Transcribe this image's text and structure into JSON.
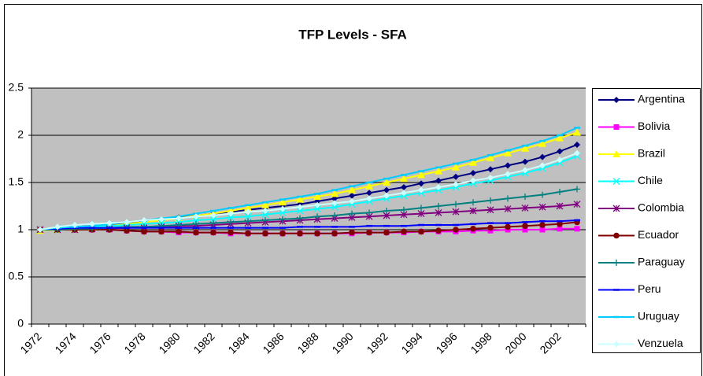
{
  "chart_data": {
    "type": "line",
    "title": "TFP Levels - SFA",
    "categories": [
      "1972",
      null,
      "1974",
      null,
      "1976",
      null,
      "1978",
      null,
      "1980",
      null,
      "1982",
      null,
      "1984",
      null,
      "1986",
      null,
      "1988",
      null,
      "1990",
      null,
      "1992",
      null,
      "1994",
      null,
      "1996",
      null,
      "1998",
      null,
      "2000",
      null,
      "2002",
      null
    ],
    "ylim": [
      0,
      2.5
    ],
    "yticks": [
      0,
      0.5,
      1,
      1.5,
      2,
      2.5
    ],
    "grid": true,
    "plot_background": "#c0c0c0",
    "legend": "right",
    "series": [
      {
        "name": "Argentina",
        "color": "#000080",
        "marker": "diamond",
        "values": [
          1.0,
          1.02,
          1.03,
          1.04,
          1.06,
          1.07,
          1.09,
          1.11,
          1.13,
          1.15,
          1.17,
          1.19,
          1.21,
          1.23,
          1.25,
          1.27,
          1.3,
          1.33,
          1.36,
          1.39,
          1.42,
          1.45,
          1.49,
          1.52,
          1.56,
          1.6,
          1.64,
          1.68,
          1.72,
          1.77,
          1.83,
          1.9
        ]
      },
      {
        "name": "Bolivia",
        "color": "#ff00ff",
        "marker": "square",
        "values": [
          1.0,
          1.0,
          1.0,
          1.0,
          1.0,
          0.99,
          0.98,
          0.98,
          0.97,
          0.97,
          0.97,
          0.96,
          0.96,
          0.96,
          0.96,
          0.96,
          0.96,
          0.96,
          0.96,
          0.97,
          0.97,
          0.97,
          0.98,
          0.98,
          0.98,
          0.99,
          0.99,
          1.0,
          1.0,
          1.0,
          1.01,
          1.01
        ]
      },
      {
        "name": "Brazil",
        "color": "#ffff00",
        "marker": "triangle",
        "values": [
          0.99,
          1.0,
          1.01,
          1.02,
          1.04,
          1.06,
          1.08,
          1.1,
          1.12,
          1.15,
          1.17,
          1.2,
          1.23,
          1.26,
          1.29,
          1.32,
          1.35,
          1.38,
          1.42,
          1.46,
          1.5,
          1.54,
          1.58,
          1.62,
          1.66,
          1.71,
          1.76,
          1.81,
          1.86,
          1.91,
          1.97,
          2.03
        ]
      },
      {
        "name": "Chile",
        "color": "#00ffff",
        "marker": "x",
        "values": [
          1.0,
          1.01,
          1.02,
          1.03,
          1.04,
          1.05,
          1.06,
          1.07,
          1.08,
          1.1,
          1.11,
          1.13,
          1.14,
          1.16,
          1.18,
          1.2,
          1.22,
          1.24,
          1.27,
          1.3,
          1.33,
          1.36,
          1.39,
          1.42,
          1.45,
          1.49,
          1.52,
          1.56,
          1.6,
          1.65,
          1.71,
          1.78
        ]
      },
      {
        "name": "Colombia",
        "color": "#800080",
        "marker": "star",
        "values": [
          1.0,
          1.0,
          1.0,
          1.01,
          1.01,
          1.02,
          1.02,
          1.03,
          1.04,
          1.04,
          1.05,
          1.06,
          1.07,
          1.08,
          1.09,
          1.1,
          1.11,
          1.12,
          1.13,
          1.14,
          1.15,
          1.16,
          1.17,
          1.18,
          1.19,
          1.2,
          1.21,
          1.22,
          1.23,
          1.24,
          1.25,
          1.27
        ]
      },
      {
        "name": "Ecuador",
        "color": "#800000",
        "marker": "circle",
        "values": [
          1.0,
          1.0,
          1.0,
          1.0,
          1.0,
          0.99,
          0.98,
          0.98,
          0.98,
          0.97,
          0.97,
          0.97,
          0.96,
          0.96,
          0.96,
          0.96,
          0.96,
          0.96,
          0.97,
          0.97,
          0.97,
          0.98,
          0.98,
          0.99,
          1.0,
          1.01,
          1.02,
          1.03,
          1.04,
          1.05,
          1.06,
          1.08
        ]
      },
      {
        "name": "Paraguay",
        "color": "#008080",
        "marker": "plus",
        "values": [
          1.0,
          1.0,
          1.01,
          1.01,
          1.02,
          1.03,
          1.03,
          1.04,
          1.05,
          1.06,
          1.07,
          1.08,
          1.09,
          1.1,
          1.11,
          1.12,
          1.14,
          1.15,
          1.17,
          1.18,
          1.2,
          1.21,
          1.23,
          1.25,
          1.27,
          1.29,
          1.31,
          1.33,
          1.35,
          1.37,
          1.4,
          1.43
        ]
      },
      {
        "name": "Peru",
        "color": "#0000ff",
        "marker": "dash",
        "values": [
          1.0,
          1.01,
          1.02,
          1.02,
          1.02,
          1.02,
          1.02,
          1.02,
          1.02,
          1.02,
          1.02,
          1.02,
          1.02,
          1.02,
          1.02,
          1.03,
          1.03,
          1.03,
          1.03,
          1.04,
          1.04,
          1.04,
          1.05,
          1.05,
          1.05,
          1.06,
          1.07,
          1.07,
          1.08,
          1.09,
          1.09,
          1.1
        ]
      },
      {
        "name": "Uruguay",
        "color": "#00ccff",
        "marker": "dash",
        "values": [
          1.0,
          1.02,
          1.03,
          1.04,
          1.06,
          1.08,
          1.1,
          1.12,
          1.14,
          1.17,
          1.2,
          1.23,
          1.26,
          1.29,
          1.32,
          1.35,
          1.38,
          1.42,
          1.46,
          1.5,
          1.54,
          1.58,
          1.62,
          1.66,
          1.7,
          1.74,
          1.79,
          1.84,
          1.89,
          1.94,
          2.0,
          2.08
        ]
      },
      {
        "name": "Venzuela",
        "color": "#ccffff",
        "marker": "diamond",
        "values": [
          1.0,
          1.03,
          1.05,
          1.06,
          1.07,
          1.08,
          1.1,
          1.11,
          1.12,
          1.14,
          1.15,
          1.17,
          1.19,
          1.2,
          1.22,
          1.24,
          1.26,
          1.28,
          1.3,
          1.33,
          1.36,
          1.39,
          1.42,
          1.45,
          1.48,
          1.52,
          1.55,
          1.59,
          1.63,
          1.68,
          1.74,
          1.81
        ]
      }
    ]
  }
}
